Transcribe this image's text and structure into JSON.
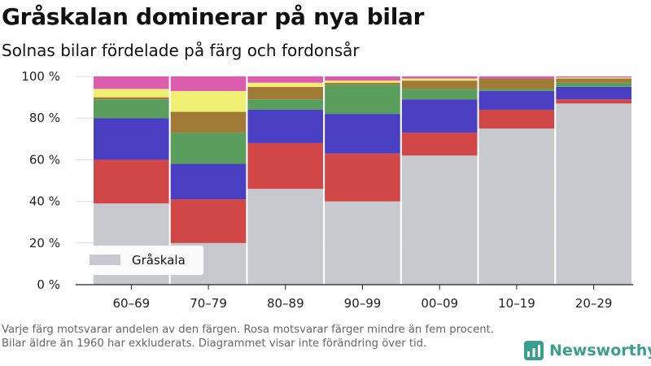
{
  "title": "Gråskalan dominerar på nya bilar",
  "subtitle": "Solnas bilar fördelade på färg och fordonsår",
  "footnote": "Varje färg motsvarar andelen av den färgen. Rosa motsvarar färger mindre än fem procent. Bilar äldre än 1960 har exkluderats. Diagrammet visar inte förändring över tid.",
  "brand": {
    "name": "Newsworthy",
    "icon": "newsworthy-logo-icon"
  },
  "chart_data": {
    "type": "bar",
    "stacked": true,
    "categories": [
      "60–69",
      "70–79",
      "80–89",
      "90–99",
      "00–09",
      "10–19",
      "20–29"
    ],
    "ylim": [
      0,
      100
    ],
    "yticks": [
      0,
      20,
      40,
      60,
      80,
      100
    ],
    "ytick_labels": [
      "0 %",
      "20 %",
      "40 %",
      "60 %",
      "80 %",
      "100 %"
    ],
    "grid": true,
    "legend": {
      "placement": "bottom-left",
      "entries": [
        "Gråskala"
      ]
    },
    "series": [
      {
        "name": "Gråskala",
        "color": "#c8c8cf",
        "values": [
          39,
          20,
          46,
          40,
          62,
          75,
          87
        ]
      },
      {
        "color": "#d14646",
        "values": [
          21,
          21,
          22,
          23,
          11,
          9,
          2
        ]
      },
      {
        "color": "#4a3fc3",
        "values": [
          20,
          17,
          16,
          19,
          16,
          9,
          6
        ]
      },
      {
        "color": "#5a9e5e",
        "values": [
          9,
          15,
          5,
          14,
          5,
          1,
          2
        ]
      },
      {
        "color": "#a17b36",
        "values": [
          1,
          10,
          6,
          1,
          4,
          5,
          2
        ]
      },
      {
        "color": "#f0ee73",
        "values": [
          4,
          10,
          2,
          1,
          1,
          0,
          0.5
        ]
      },
      {
        "color": "#dc5cad",
        "values": [
          6,
          7,
          3,
          2,
          1,
          1,
          0.5
        ]
      }
    ]
  }
}
